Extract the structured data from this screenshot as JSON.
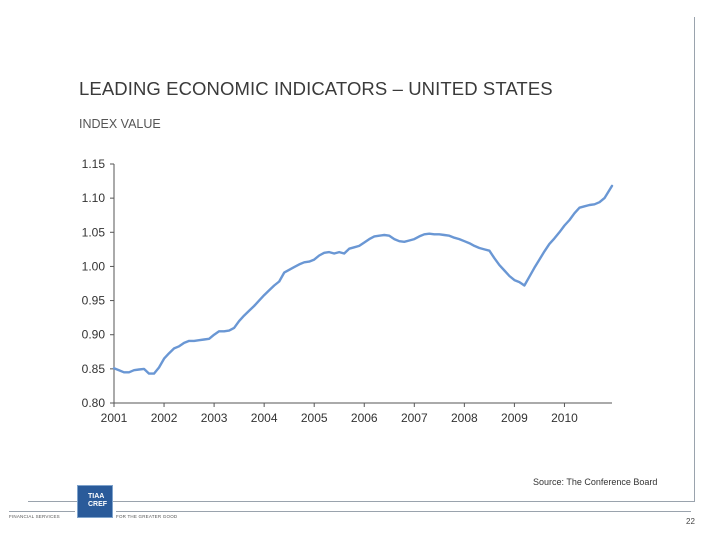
{
  "title": "LEADING ECONOMIC INDICATORS – UNITED STATES",
  "subtitle": "INDEX VALUE",
  "source": "Source: The Conference Board",
  "page_number": "22",
  "footer": {
    "left": "FINANCIAL SERVICES",
    "right": "FOR THE GREATER GOOD"
  },
  "logo": {
    "line1": "TIAA",
    "line2": "CREF"
  },
  "colors": {
    "line": "#6a97d4",
    "axis": "#555555",
    "text": "#333333"
  },
  "chart_data": {
    "type": "line",
    "title": "LEADING ECONOMIC INDICATORS – UNITED STATES",
    "xlabel": "",
    "ylabel": "INDEX VALUE",
    "ylim": [
      0.8,
      1.15
    ],
    "xlim": [
      2001,
      2010.95
    ],
    "yticks": [
      0.8,
      0.85,
      0.9,
      0.95,
      1.0,
      1.05,
      1.1,
      1.15
    ],
    "ytick_labels": [
      "0.80",
      "0.85",
      "0.90",
      "0.95",
      "1.00",
      "1.05",
      "1.10",
      "1.15"
    ],
    "xticks": [
      2001,
      2002,
      2003,
      2004,
      2005,
      2006,
      2007,
      2008,
      2009,
      2010
    ],
    "xtick_labels": [
      "2001",
      "2002",
      "2003",
      "2004",
      "2005",
      "2006",
      "2007",
      "2008",
      "2009",
      "2010"
    ],
    "grid": false,
    "series": [
      {
        "x": [
          2001.0,
          2001.1,
          2001.2,
          2001.3,
          2001.4,
          2001.5,
          2001.6,
          2001.7,
          2001.8,
          2001.9,
          2002.0,
          2002.1,
          2002.2,
          2002.3,
          2002.4,
          2002.5,
          2002.6,
          2002.7,
          2002.8,
          2002.9,
          2003.0,
          2003.1,
          2003.2,
          2003.3,
          2003.4,
          2003.5,
          2003.6,
          2003.7,
          2003.8,
          2003.9,
          2004.0,
          2004.1,
          2004.2,
          2004.3,
          2004.4,
          2004.5,
          2004.6,
          2004.7,
          2004.8,
          2004.9,
          2005.0,
          2005.1,
          2005.2,
          2005.3,
          2005.4,
          2005.5,
          2005.6,
          2005.7,
          2005.8,
          2005.9,
          2006.0,
          2006.1,
          2006.2,
          2006.3,
          2006.4,
          2006.5,
          2006.6,
          2006.7,
          2006.8,
          2006.9,
          2007.0,
          2007.1,
          2007.2,
          2007.3,
          2007.4,
          2007.5,
          2007.6,
          2007.7,
          2007.8,
          2007.9,
          2008.0,
          2008.1,
          2008.2,
          2008.3,
          2008.4,
          2008.5,
          2008.6,
          2008.7,
          2008.8,
          2008.9,
          2009.0,
          2009.1,
          2009.2,
          2009.3,
          2009.4,
          2009.5,
          2009.6,
          2009.7,
          2009.8,
          2009.9,
          2010.0,
          2010.1,
          2010.2,
          2010.3,
          2010.4,
          2010.5,
          2010.6,
          2010.7,
          2010.8,
          2010.95
        ],
        "y": [
          0.851,
          0.848,
          0.845,
          0.845,
          0.848,
          0.849,
          0.85,
          0.843,
          0.843,
          0.852,
          0.865,
          0.873,
          0.88,
          0.883,
          0.888,
          0.891,
          0.891,
          0.892,
          0.893,
          0.894,
          0.9,
          0.905,
          0.905,
          0.906,
          0.91,
          0.92,
          0.928,
          0.935,
          0.942,
          0.95,
          0.958,
          0.965,
          0.972,
          0.978,
          0.991,
          0.995,
          0.999,
          1.003,
          1.006,
          1.007,
          1.01,
          1.016,
          1.02,
          1.021,
          1.019,
          1.021,
          1.019,
          1.026,
          1.028,
          1.03,
          1.035,
          1.04,
          1.044,
          1.045,
          1.046,
          1.045,
          1.04,
          1.037,
          1.036,
          1.038,
          1.04,
          1.044,
          1.047,
          1.048,
          1.047,
          1.047,
          1.046,
          1.045,
          1.042,
          1.04,
          1.037,
          1.034,
          1.03,
          1.027,
          1.025,
          1.023,
          1.012,
          1.002,
          0.994,
          0.986,
          0.98,
          0.977,
          0.972,
          0.985,
          0.998,
          1.01,
          1.022,
          1.033,
          1.041,
          1.05,
          1.06,
          1.068,
          1.078,
          1.086,
          1.088,
          1.09,
          1.091,
          1.094,
          1.1,
          1.118
        ]
      }
    ]
  }
}
